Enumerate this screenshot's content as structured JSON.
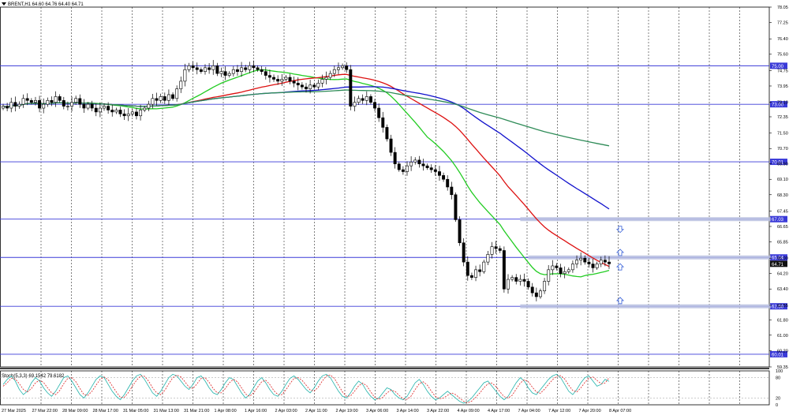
{
  "header": {
    "symbol_text": "BRENT,H1  64.60 64.76 64.40 64.71"
  },
  "colors": {
    "background": "#ffffff",
    "grid": "#000000",
    "candle": "#000000",
    "level_line": "#3a3ad8",
    "level_label": "#3a3ad8",
    "current_label": "#111111",
    "ma_green": "#22cc22",
    "ma_red": "#dd1111",
    "ma_blue": "#1111cc",
    "ma_long": "#2e8b57",
    "zone": "#b8bfe0",
    "arrow": "#4a6fdc",
    "stoch_main": "#20b2aa",
    "stoch_signal": "#dd2222"
  },
  "chart_data": [
    {
      "type": "candlestick",
      "title": "BRENT,H1",
      "ohlc_current": {
        "open": 64.6,
        "high": 64.76,
        "low": 64.4,
        "close": 64.71
      },
      "ylim": [
        59.35,
        78.05
      ],
      "y_ticks": [
        78.05,
        77.25,
        76.4,
        75.6,
        74.75,
        73.95,
        73.1,
        72.35,
        71.5,
        70.7,
        69.9,
        69.1,
        68.3,
        67.45,
        66.65,
        65.85,
        65.0,
        64.2,
        63.4,
        62.55,
        61.8,
        61.0,
        60.2,
        59.35
      ],
      "x_tick_labels": [
        "27 Mar 2025",
        "27 Mar 22:00",
        "28 Mar 09:00",
        "28 Mar 17:00",
        "31 Mar 05:00",
        "31 Mar 13:00",
        "31 Mar 21:00",
        "1 Apr 08:00",
        "1 Apr 16:00",
        "2 Apr 03:00",
        "2 Apr 11:00",
        "2 Apr 19:00",
        "3 Apr 06:00",
        "3 Apr 14:00",
        "3 Apr 22:00",
        "4 Apr 09:00",
        "4 Apr 17:00",
        "7 Apr 04:00",
        "7 Apr 12:00",
        "7 Apr 20:00",
        "8 Apr 07:00"
      ],
      "close_prices": [
        72.9,
        72.8,
        73.1,
        72.9,
        73.0,
        73.3,
        73.2,
        73.1,
        73.2,
        72.8,
        73.0,
        73.2,
        73.1,
        73.4,
        73.2,
        72.9,
        72.9,
        73.1,
        73.3,
        73.0,
        72.8,
        73.0,
        72.8,
        72.6,
        72.8,
        72.9,
        72.7,
        72.6,
        72.7,
        72.5,
        72.4,
        72.5,
        72.6,
        72.4,
        72.7,
        72.8,
        73.0,
        73.3,
        73.2,
        73.4,
        73.2,
        73.5,
        73.3,
        73.8,
        74.2,
        74.8,
        75.0,
        74.9,
        74.8,
        74.7,
        74.9,
        74.8,
        75.0,
        74.6,
        74.7,
        74.5,
        74.6,
        74.8,
        74.7,
        74.9,
        74.8,
        75.0,
        74.9,
        74.8,
        74.7,
        74.5,
        74.4,
        74.3,
        74.2,
        74.3,
        74.4,
        74.2,
        74.1,
        74.0,
        73.9,
        73.8,
        74.0,
        73.9,
        74.1,
        74.3,
        74.4,
        74.6,
        74.8,
        74.9,
        75.0,
        74.8,
        72.9,
        73.1,
        73.3,
        73.2,
        73.4,
        73.1,
        72.8,
        72.3,
        71.8,
        71.2,
        70.5,
        69.9,
        69.6,
        69.5,
        69.8,
        70.0,
        70.1,
        69.9,
        69.8,
        69.7,
        69.6,
        69.5,
        69.3,
        69.1,
        68.7,
        68.3,
        67.0,
        65.8,
        64.8,
        64.1,
        64.0,
        64.4,
        64.3,
        64.8,
        65.2,
        65.6,
        65.5,
        65.4,
        63.4,
        63.9,
        64.0,
        63.8,
        63.9,
        63.8,
        63.5,
        63.2,
        63.0,
        63.3,
        63.8,
        64.4,
        64.6,
        64.5,
        64.2,
        64.3,
        64.4,
        64.7,
        64.9,
        65.0,
        64.8,
        64.7,
        64.5,
        64.7,
        64.9,
        64.8,
        64.71
      ],
      "horizontal_levels": [
        {
          "value": 75.0,
          "label": "75.00"
        },
        {
          "value": 73.0,
          "label": "73.00"
        },
        {
          "value": 70.01,
          "label": "70.01"
        },
        {
          "value": 67.03,
          "label": "67.03"
        },
        {
          "value": 65.04,
          "label": "65.04"
        },
        {
          "value": 62.5,
          "label": "62.50"
        },
        {
          "value": 60.01,
          "label": "60.01"
        }
      ],
      "current_price": {
        "value": 64.71,
        "label": "64.71"
      },
      "moving_averages": [
        {
          "color_key": "ma_green",
          "period": 20
        },
        {
          "color_key": "ma_red",
          "period": 40
        },
        {
          "color_key": "ma_blue",
          "period": 70
        },
        {
          "color_key": "ma_long",
          "period": 200
        }
      ],
      "zones": [
        {
          "price": 67.03,
          "x_start_index": 128,
          "x_end_index": 190
        },
        {
          "price": 65.04,
          "x_start_index": 130,
          "x_end_index": 190
        },
        {
          "price": 62.5,
          "x_start_index": 128,
          "x_end_index": 190
        }
      ],
      "arrows": [
        {
          "price": 66.5,
          "direction": "down"
        },
        {
          "price": 65.3,
          "direction": "up"
        },
        {
          "price": 64.55,
          "direction": "up"
        },
        {
          "price": 62.8,
          "direction": "up"
        }
      ]
    },
    {
      "type": "line",
      "title": "Stoch(5,3,3) 69.1542 79.6182",
      "ylim": [
        0,
        100
      ],
      "y_ticks": [
        100,
        80,
        20,
        0
      ],
      "series": [
        {
          "values": [
            60,
            75,
            85,
            70,
            45,
            30,
            40,
            65,
            80,
            70,
            50,
            35,
            25,
            40,
            60,
            80,
            85,
            70,
            50,
            30,
            20,
            35,
            55,
            75,
            85,
            80,
            60,
            40,
            25,
            15,
            30,
            50,
            70,
            85,
            90,
            75,
            55,
            35,
            25,
            40,
            60,
            80,
            90,
            85,
            70,
            55,
            45,
            60,
            80,
            85,
            70,
            50,
            35,
            30,
            45,
            65,
            80,
            75,
            55,
            35,
            20,
            30,
            50,
            70,
            80,
            65,
            45,
            30,
            25,
            40,
            60,
            78,
            85,
            75,
            60,
            45,
            35,
            50,
            70,
            85,
            90,
            80,
            60,
            40,
            25,
            20,
            35,
            55,
            70,
            60,
            40,
            25,
            15,
            20,
            35,
            50,
            45,
            30,
            20,
            15,
            25,
            45,
            65,
            75,
            60,
            40,
            25,
            15,
            20,
            30,
            40,
            30,
            20,
            10,
            5,
            10,
            20,
            35,
            50,
            65,
            70,
            55,
            40,
            25,
            15,
            25,
            45,
            65,
            80,
            70,
            50,
            35,
            30,
            45,
            60,
            75,
            85,
            90,
            80,
            60,
            40,
            30,
            45,
            65,
            80,
            85,
            70,
            55,
            60,
            75,
            69
          ]
        },
        {
          "values": [
            55,
            65,
            78,
            76,
            62,
            45,
            38,
            48,
            65,
            72,
            66,
            50,
            35,
            30,
            42,
            62,
            78,
            80,
            68,
            48,
            30,
            28,
            40,
            58,
            75,
            82,
            74,
            56,
            38,
            22,
            22,
            36,
            55,
            72,
            85,
            84,
            70,
            50,
            35,
            30,
            42,
            62,
            80,
            88,
            82,
            68,
            52,
            48,
            62,
            78,
            80,
            66,
            48,
            35,
            35,
            48,
            65,
            75,
            68,
            50,
            32,
            25,
            35,
            52,
            68,
            72,
            60,
            42,
            30,
            30,
            44,
            62,
            78,
            80,
            72,
            58,
            44,
            40,
            52,
            70,
            85,
            88,
            78,
            58,
            38,
            25,
            26,
            40,
            56,
            64,
            56,
            38,
            22,
            16,
            22,
            35,
            43,
            40,
            28,
            18,
            16,
            26,
            45,
            62,
            68,
            58,
            40,
            25,
            18,
            20,
            28,
            35,
            30,
            20,
            10,
            6,
            11,
            22,
            35,
            50,
            62,
            64,
            54,
            38,
            24,
            20,
            28,
            46,
            64,
            74,
            68,
            52,
            38,
            34,
            46,
            60,
            74,
            84,
            86,
            76,
            58,
            42,
            38,
            50,
            66,
            78,
            82,
            72,
            62,
            64,
            80
          ]
        }
      ]
    }
  ]
}
